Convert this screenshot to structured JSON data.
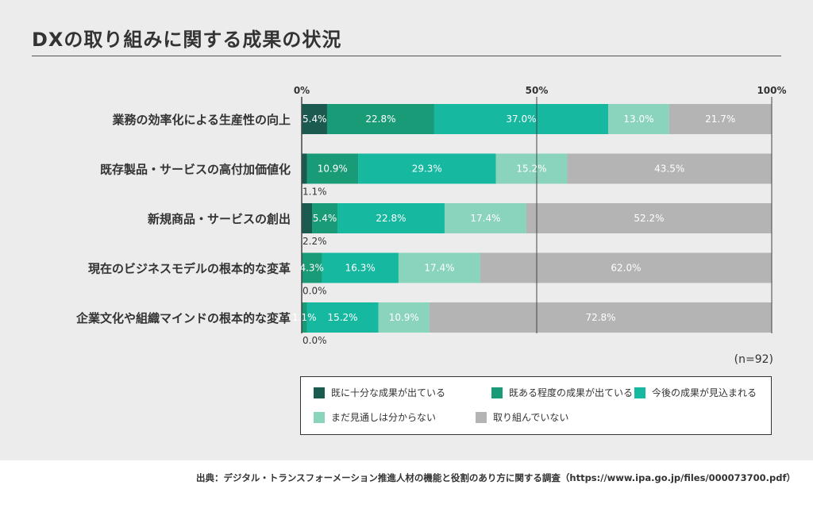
{
  "title": "DXの取り組みに関する成果の状況",
  "n_label": "(n=92)",
  "source": "出典：デジタル・トランスフォーメーション推進人材の機能と役割のあり方に関する調査（https://www.ipa.go.jp/files/000073700.pdf）",
  "chart_data": {
    "type": "bar",
    "orientation": "horizontal",
    "stacked": true,
    "xlim": [
      0,
      100
    ],
    "x_ticks": [
      "0%",
      "50%",
      "100%"
    ],
    "categories": [
      "業務の効率化による生産性の向上",
      "既存製品・サービスの高付加価値化",
      "新規商品・サービスの創出",
      "現在のビジネスモデルの根本的な変革",
      "企業文化や組織マインドの根本的な変革"
    ],
    "series": [
      {
        "name": "既に十分な成果が出ている",
        "color": "#1a5a4f",
        "values": [
          5.4,
          1.1,
          2.2,
          0.0,
          0.0
        ]
      },
      {
        "name": "既ある程度の成果が出ている",
        "color": "#1a9b78",
        "values": [
          22.8,
          10.9,
          5.4,
          4.3,
          1.1
        ]
      },
      {
        "name": "今後の成果が見込まれる",
        "color": "#16b8a0",
        "values": [
          37.0,
          29.3,
          22.8,
          16.3,
          15.2
        ]
      },
      {
        "name": "まだ見通しは分からない",
        "color": "#8ad4bd",
        "values": [
          13.0,
          15.2,
          17.4,
          17.4,
          10.9
        ]
      },
      {
        "name": "取り組んでいない",
        "color": "#b4b4b4",
        "values": [
          21.7,
          43.5,
          52.2,
          62.0,
          72.8
        ]
      }
    ],
    "data_labels": [
      [
        "5.4%",
        "22.8%",
        "37.0%",
        "13.0%",
        "21.7%"
      ],
      [
        "1.1%",
        "10.9%",
        "29.3%",
        "15.2%",
        "43.5%"
      ],
      [
        "2.2%",
        "5.4%",
        "22.8%",
        "17.4%",
        "52.2%"
      ],
      [
        "0.0%",
        "4.3%",
        "16.3%",
        "17.4%",
        "62.0%"
      ],
      [
        "0.0%",
        "1.1%",
        "15.2%",
        "10.9%",
        "72.8%"
      ]
    ],
    "legend_position": "bottom",
    "gridlines": true
  }
}
